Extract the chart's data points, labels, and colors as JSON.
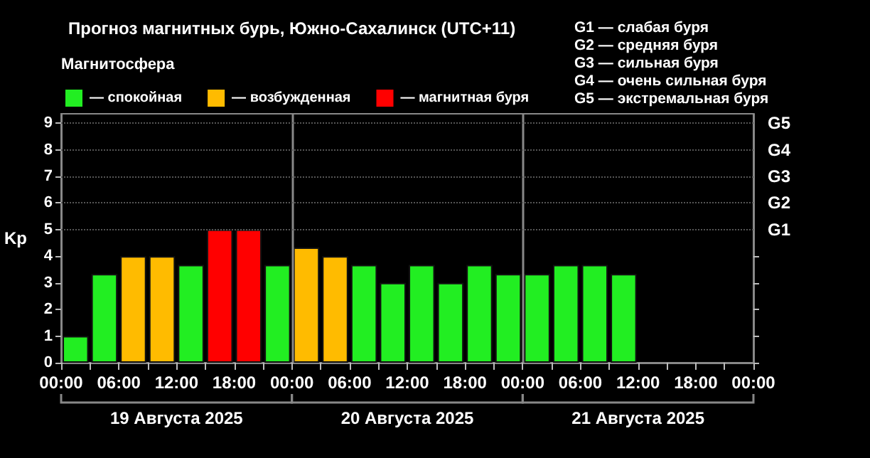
{
  "chart_data": {
    "type": "bar",
    "title": "Прогноз магнитных бурь, Южно-Сахалинск (UTC+11)",
    "ylabel": "Kp",
    "legend_title": "Магнитосфера",
    "legend": "top left",
    "stacked": true,
    "x": [
      "2025-08-19T01:30",
      "2025-08-19T04:30",
      "2025-08-19T07:30",
      "2025-08-19T10:30",
      "2025-08-19T13:30",
      "2025-08-19T16:30",
      "2025-08-19T19:30",
      "2025-08-19T22:30",
      "2025-08-20T01:30",
      "2025-08-20T04:30",
      "2025-08-20T07:30",
      "2025-08-20T10:30",
      "2025-08-20T13:30",
      "2025-08-20T16:30",
      "2025-08-20T19:30",
      "2025-08-20T22:30",
      "2025-08-21T01:30",
      "2025-08-21T04:30",
      "2025-08-21T07:30",
      "2025-08-21T10:30"
    ],
    "series": [
      {
        "name": "— спокойная",
        "color": "#22ee22",
        "values": [
          1,
          3.33,
          null,
          null,
          3.67,
          null,
          null,
          3.67,
          null,
          null,
          3.67,
          3,
          3.67,
          3,
          3.67,
          3.33,
          3.33,
          3.67,
          3.67,
          3.33
        ]
      },
      {
        "name": "— возбужденная",
        "color": "#ffbb00",
        "values": [
          null,
          null,
          4,
          4,
          null,
          null,
          null,
          null,
          4.33,
          4,
          null,
          null,
          null,
          null,
          null,
          null,
          null,
          null,
          null,
          null
        ]
      },
      {
        "name": "— магнитная буря",
        "color": "#ff0000",
        "values": [
          null,
          null,
          null,
          null,
          null,
          5,
          5,
          null,
          null,
          null,
          null,
          null,
          null,
          null,
          null,
          null,
          null,
          null,
          null,
          null
        ]
      }
    ],
    "xlim": [
      "2025-08-19T00:00",
      "2025-08-22T00:00"
    ],
    "xticks": [
      {
        "value": "2025-08-19T00:00",
        "label": "00:00"
      },
      {
        "value": "2025-08-19T03:00",
        "label": null
      },
      {
        "value": "2025-08-19T06:00",
        "label": "06:00"
      },
      {
        "value": "2025-08-19T09:00",
        "label": null
      },
      {
        "value": "2025-08-19T12:00",
        "label": "12:00"
      },
      {
        "value": "2025-08-19T15:00",
        "label": null
      },
      {
        "value": "2025-08-19T18:00",
        "label": "18:00"
      },
      {
        "value": "2025-08-19T21:00",
        "label": null
      },
      {
        "value": "2025-08-20T00:00",
        "label": "00:00"
      },
      {
        "value": "2025-08-20T03:00",
        "label": null
      },
      {
        "value": "2025-08-20T06:00",
        "label": "06:00"
      },
      {
        "value": "2025-08-20T09:00",
        "label": null
      },
      {
        "value": "2025-08-20T12:00",
        "label": "12:00"
      },
      {
        "value": "2025-08-20T15:00",
        "label": null
      },
      {
        "value": "2025-08-20T18:00",
        "label": "18:00"
      },
      {
        "value": "2025-08-20T21:00",
        "label": null
      },
      {
        "value": "2025-08-21T00:00",
        "label": "00:00"
      },
      {
        "value": "2025-08-21T03:00",
        "label": null
      },
      {
        "value": "2025-08-21T06:00",
        "label": "06:00"
      },
      {
        "value": "2025-08-21T09:00",
        "label": null
      },
      {
        "value": "2025-08-21T12:00",
        "label": "12:00"
      },
      {
        "value": "2025-08-21T15:00",
        "label": null
      },
      {
        "value": "2025-08-21T18:00",
        "label": "18:00"
      },
      {
        "value": "2025-08-21T21:00",
        "label": null
      },
      {
        "value": "2025-08-22T00:00",
        "label": "00:00"
      }
    ],
    "ylim": [
      0,
      9.35
    ],
    "yticks": [
      0,
      1,
      2,
      3,
      4,
      5,
      6,
      7,
      8,
      9
    ],
    "ref_lines": [
      {
        "axis": "x",
        "value": "2025-08-20T00:00",
        "color": "#888888"
      },
      {
        "axis": "x",
        "value": "2025-08-21T00:00",
        "color": "#888888"
      },
      {
        "axis": "y",
        "value": 5,
        "label": "G1",
        "color": "#555555",
        "line_style": "dotted"
      },
      {
        "axis": "y",
        "value": 6,
        "label": "G2",
        "color": "#555555",
        "line_style": "dotted"
      },
      {
        "axis": "y",
        "value": 7,
        "label": "G3",
        "color": "#555555",
        "line_style": "dotted"
      },
      {
        "axis": "y",
        "value": 8,
        "label": "G4",
        "color": "#555555",
        "line_style": "dotted"
      },
      {
        "axis": "y",
        "value": 9,
        "label": "G5",
        "color": "#555555",
        "line_style": "dotted"
      }
    ],
    "annotations": [
      "G1 — слабая буря",
      "G2 — средняя буря",
      "G3 — сильная буря",
      "G4 — очень сильная буря",
      "G5 — экстремальная буря",
      "19 Августа 2025",
      "20 Августа 2025",
      "21 Августа 2025"
    ]
  }
}
